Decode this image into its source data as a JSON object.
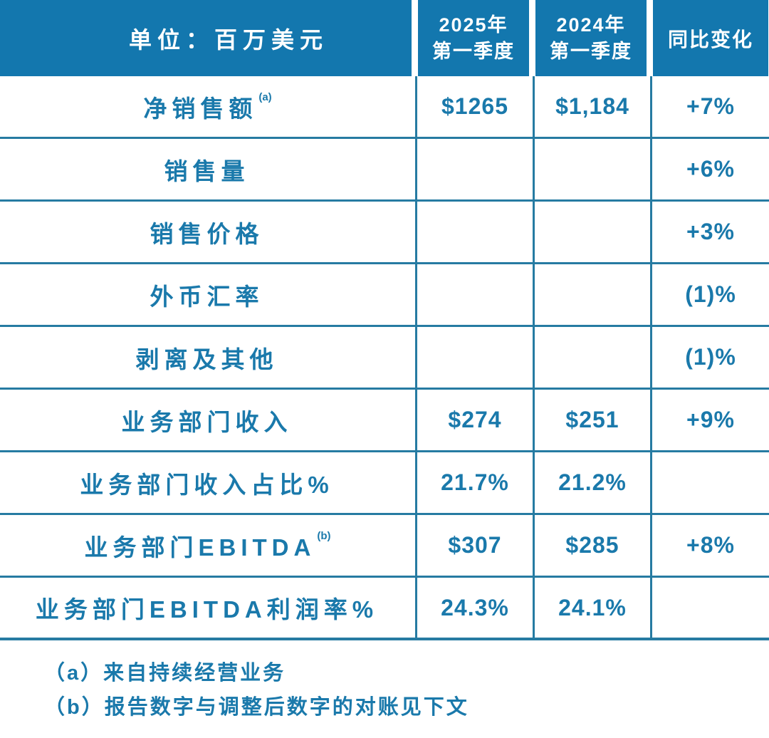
{
  "colors": {
    "header_bg": "#1377ae",
    "header_text": "#ffffff",
    "body_text": "#1a79ab",
    "grid_line": "#267ba2"
  },
  "table": {
    "unit_label": "单位：百万美元",
    "columns": [
      {
        "line1": "2025年",
        "line2": "第一季度"
      },
      {
        "line1": "2024年",
        "line2": "第一季度"
      },
      {
        "line1": "同比变化",
        "line2": ""
      }
    ],
    "rows": [
      {
        "label": "净销售额",
        "sup": "(a)",
        "v2025": "$1265",
        "v2024": "$1,184",
        "yoy": "+7%"
      },
      {
        "label": "销售量",
        "sup": "",
        "v2025": "",
        "v2024": "",
        "yoy": "+6%"
      },
      {
        "label": "销售价格",
        "sup": "",
        "v2025": "",
        "v2024": "",
        "yoy": "+3%"
      },
      {
        "label": "外币汇率",
        "sup": "",
        "v2025": "",
        "v2024": "",
        "yoy": "(1)%"
      },
      {
        "label": "剥离及其他",
        "sup": "",
        "v2025": "",
        "v2024": "",
        "yoy": "(1)%"
      },
      {
        "label": "业务部门收入",
        "sup": "",
        "v2025": "$274",
        "v2024": "$251",
        "yoy": "+9%"
      },
      {
        "label": "业务部门收入占比%",
        "sup": "",
        "v2025": "21.7%",
        "v2024": "21.2%",
        "yoy": ""
      },
      {
        "label": "业务部门EBITDA",
        "sup": "(b)",
        "v2025": "$307",
        "v2024": "$285",
        "yoy": "+8%"
      },
      {
        "label": "业务部门EBITDA利润率%",
        "sup": "",
        "v2025": "24.3%",
        "v2024": "24.1%",
        "yoy": ""
      }
    ],
    "footnotes": [
      "（a）来自持续经营业务",
      "（b）报告数字与调整后数字的对账见下文"
    ]
  },
  "chart_data": {
    "type": "table",
    "title": "单位：百万美元",
    "columns": [
      "单位：百万美元",
      "2025年第一季度",
      "2024年第一季度",
      "同比变化"
    ],
    "rows": [
      [
        "净销售额(a)",
        "$1265",
        "$1,184",
        "+7%"
      ],
      [
        "销售量",
        "",
        "",
        "+6%"
      ],
      [
        "销售价格",
        "",
        "",
        "+3%"
      ],
      [
        "外币汇率",
        "",
        "",
        "(1)%"
      ],
      [
        "剥离及其他",
        "",
        "",
        "(1)%"
      ],
      [
        "业务部门收入",
        "$274",
        "$251",
        "+9%"
      ],
      [
        "业务部门收入占比%",
        "21.7%",
        "21.2%",
        ""
      ],
      [
        "业务部门EBITDA(b)",
        "$307",
        "$285",
        "+8%"
      ],
      [
        "业务部门EBITDA利润率%",
        "24.3%",
        "24.1%",
        ""
      ]
    ],
    "footnotes": [
      "（a）来自持续经营业务",
      "（b）报告数字与调整后数字的对账见下文"
    ]
  }
}
